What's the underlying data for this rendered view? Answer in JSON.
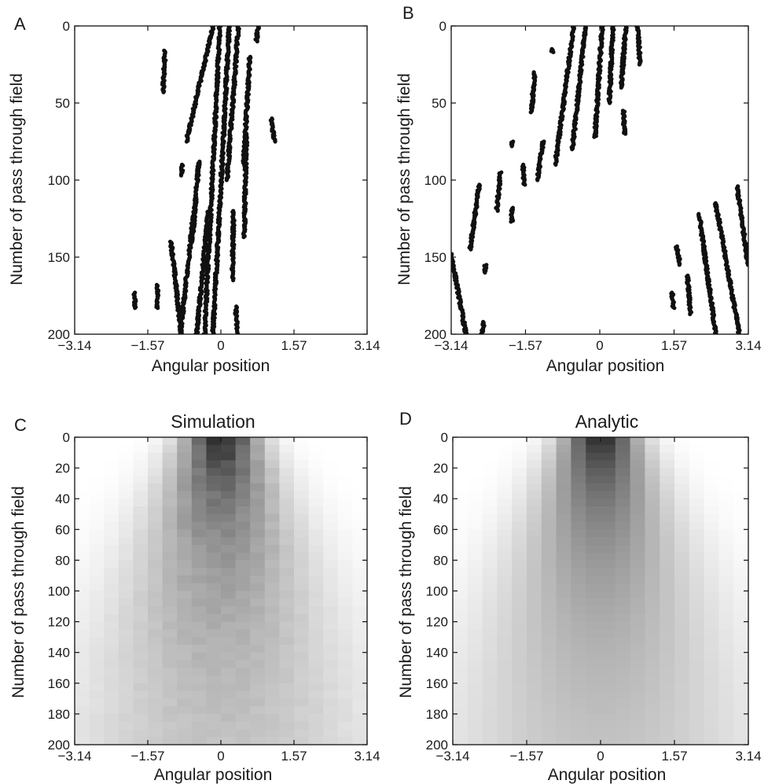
{
  "figure": {
    "panels": [
      {
        "letter": "A",
        "title": ""
      },
      {
        "letter": "B",
        "title": ""
      },
      {
        "letter": "C",
        "title": "Simulation"
      },
      {
        "letter": "D",
        "title": "Analytic"
      }
    ]
  },
  "chart_data": [
    {
      "panel": "A",
      "type": "scatter",
      "title": "",
      "xlabel": "Angular position",
      "ylabel": "Number of pass through field",
      "xlim": [
        -3.14,
        3.14
      ],
      "ylim": [
        0,
        200
      ],
      "y_reversed": true,
      "xticks": [
        "-3.14",
        "-1.57",
        "0",
        "1.57",
        "3.14"
      ],
      "yticks": [
        "0",
        "50",
        "100",
        "150",
        "200"
      ],
      "grid": false,
      "marker_color": "#111111",
      "segments": [
        {
          "x": [
            -0.17,
            -0.74
          ],
          "y": [
            0,
            75
          ]
        },
        {
          "x": [
            -0.02,
            -0.35
          ],
          "y": [
            0,
            200
          ]
        },
        {
          "x": [
            0.18,
            -0.17
          ],
          "y": [
            0,
            200
          ]
        },
        {
          "x": [
            0.38,
            0.13
          ],
          "y": [
            0,
            100
          ]
        },
        {
          "x": [
            0.8,
            0.76
          ],
          "y": [
            0,
            10
          ]
        },
        {
          "x": [
            -1.2,
            -1.24
          ],
          "y": [
            16,
            43
          ]
        },
        {
          "x": [
            0.55,
            0.5
          ],
          "y": [
            70,
            137
          ]
        },
        {
          "x": [
            0.62,
            0.49
          ],
          "y": [
            20,
            90
          ]
        },
        {
          "x": [
            1.08,
            1.15
          ],
          "y": [
            60,
            75
          ]
        },
        {
          "x": [
            -0.83,
            -0.83
          ],
          "y": [
            90,
            97
          ]
        },
        {
          "x": [
            -0.47,
            -0.62
          ],
          "y": [
            88,
            140
          ]
        },
        {
          "x": [
            0.27,
            0.25
          ],
          "y": [
            120,
            165
          ]
        },
        {
          "x": [
            -0.58,
            -0.87
          ],
          "y": [
            120,
            200
          ]
        },
        {
          "x": [
            -0.27,
            -0.52
          ],
          "y": [
            120,
            200
          ]
        },
        {
          "x": [
            -1.07,
            -0.85
          ],
          "y": [
            140,
            200
          ]
        },
        {
          "x": [
            -1.36,
            -1.36
          ],
          "y": [
            168,
            183
          ]
        },
        {
          "x": [
            -1.85,
            -1.85
          ],
          "y": [
            173,
            183
          ]
        },
        {
          "x": [
            0.32,
            0.35
          ],
          "y": [
            182,
            200
          ]
        }
      ]
    },
    {
      "panel": "B",
      "type": "scatter",
      "title": "",
      "xlabel": "Angular position",
      "ylabel": "Number of pass through field",
      "xlim": [
        -3.14,
        3.14
      ],
      "ylim": [
        0,
        200
      ],
      "y_reversed": true,
      "xticks": [
        "-3.14",
        "-1.57",
        "0",
        "1.57",
        "3.14"
      ],
      "yticks": [
        "0",
        "50",
        "100",
        "150",
        "200"
      ],
      "grid": false,
      "marker_color": "#111111",
      "segments": [
        {
          "x": [
            -0.55,
            -0.94
          ],
          "y": [
            0,
            90
          ]
        },
        {
          "x": [
            -0.3,
            -0.58
          ],
          "y": [
            0,
            80
          ]
        },
        {
          "x": [
            0.05,
            -0.1
          ],
          "y": [
            0,
            72
          ]
        },
        {
          "x": [
            0.28,
            0.2
          ],
          "y": [
            0,
            50
          ]
        },
        {
          "x": [
            0.55,
            0.45
          ],
          "y": [
            0,
            40
          ]
        },
        {
          "x": [
            0.8,
            0.85
          ],
          "y": [
            0,
            25
          ]
        },
        {
          "x": [
            0.5,
            0.52
          ],
          "y": [
            55,
            70
          ]
        },
        {
          "x": [
            -1.0,
            -1.0
          ],
          "y": [
            15,
            17
          ]
        },
        {
          "x": [
            -1.38,
            -1.44
          ],
          "y": [
            30,
            56
          ]
        },
        {
          "x": [
            -1.2,
            -1.32
          ],
          "y": [
            75,
            100
          ]
        },
        {
          "x": [
            -1.62,
            -1.6
          ],
          "y": [
            90,
            103
          ]
        },
        {
          "x": [
            -2.1,
            -2.18
          ],
          "y": [
            95,
            120
          ]
        },
        {
          "x": [
            -1.85,
            -1.85
          ],
          "y": [
            75,
            78
          ]
        },
        {
          "x": [
            -2.55,
            -2.74
          ],
          "y": [
            103,
            145
          ]
        },
        {
          "x": [
            -2.42,
            -2.42
          ],
          "y": [
            155,
            160
          ]
        },
        {
          "x": [
            -3.14,
            -2.83
          ],
          "y": [
            148,
            200
          ]
        },
        {
          "x": [
            -2.45,
            -2.5
          ],
          "y": [
            192,
            200
          ]
        },
        {
          "x": [
            -1.86,
            -1.86
          ],
          "y": [
            118,
            127
          ]
        },
        {
          "x": [
            2.9,
            3.14
          ],
          "y": [
            104,
            155
          ]
        },
        {
          "x": [
            2.45,
            2.95
          ],
          "y": [
            115,
            200
          ]
        },
        {
          "x": [
            2.1,
            2.45
          ],
          "y": [
            122,
            200
          ]
        },
        {
          "x": [
            1.85,
            1.92
          ],
          "y": [
            162,
            187
          ]
        },
        {
          "x": [
            1.62,
            1.7
          ],
          "y": [
            143,
            155
          ]
        },
        {
          "x": [
            1.53,
            1.56
          ],
          "y": [
            173,
            183
          ]
        }
      ]
    },
    {
      "panel": "C",
      "type": "heatmap",
      "title": "Simulation",
      "xlabel": "Angular position",
      "ylabel": "Number of pass through field",
      "xlim": [
        -3.14,
        3.14
      ],
      "ylim": [
        0,
        200
      ],
      "y_reversed": true,
      "xticks": [
        "-3.14",
        "-1.57",
        "0",
        "1.57",
        "3.14"
      ],
      "yticks": [
        "0",
        "20",
        "40",
        "60",
        "80",
        "100",
        "120",
        "140",
        "160",
        "180",
        "200"
      ],
      "colormap": "white-to-black",
      "bins": 20,
      "peak_darkness": 0.92,
      "center_darkness_at_200": 0.55,
      "noise": true
    },
    {
      "panel": "D",
      "type": "heatmap",
      "title": "Analytic",
      "xlabel": "Angular position",
      "ylabel": "Number of pass through field",
      "xlim": [
        -3.14,
        3.14
      ],
      "ylim": [
        0,
        200
      ],
      "y_reversed": true,
      "xticks": [
        "-3.14",
        "-1.57",
        "0",
        "1.57",
        "3.14"
      ],
      "yticks": [
        "0",
        "20",
        "40",
        "60",
        "80",
        "100",
        "120",
        "140",
        "160",
        "180",
        "200"
      ],
      "colormap": "white-to-black",
      "bins": 20,
      "peak_darkness": 0.92,
      "center_darkness_at_200": 0.55,
      "noise": false
    }
  ]
}
